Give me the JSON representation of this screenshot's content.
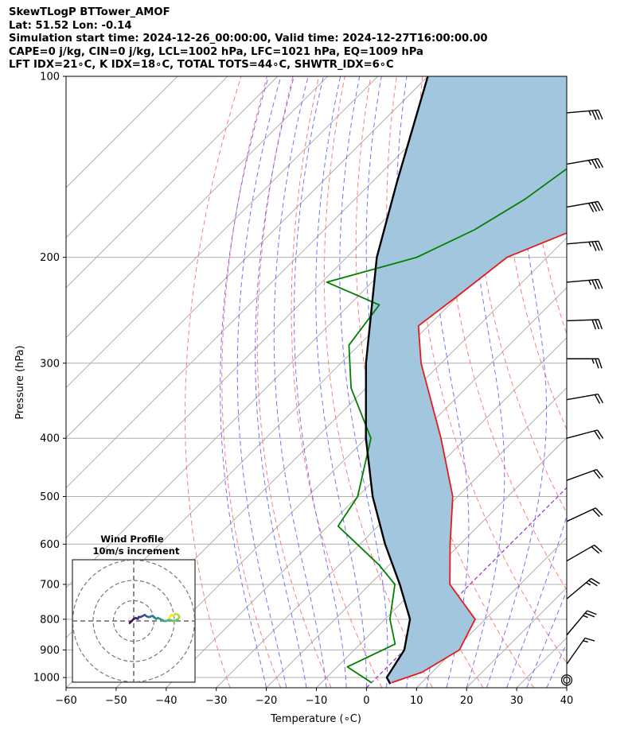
{
  "header": {
    "line1": "SkewTLogP BTTower_AMOF",
    "line2": "Lat: 51.52   Lon: -0.14",
    "line3": "Simulation start time: 2024-12-26_00:00:00, Valid time: 2024-12-27T16:00:00.00",
    "line4": "CAPE=0 j/kg, CIN=0 j/kg, LCL=1002 hPa, LFC=1021 hPa, EQ=1009 hPa",
    "line5": "LFT IDX=21∘C, K IDX=18∘C, TOTAL TOTS=44∘C, SHWTR_IDX=6∘C"
  },
  "inset": {
    "title": "Wind Profile",
    "subtitle": "10m/s increment"
  },
  "colors": {
    "temperature": "#e41a1c",
    "dewpoint": "#008000",
    "parcel": "#000000",
    "cape_fill": "#a3c6df",
    "dry_adiabat": "#ff6666",
    "moist_adiabat": "#5a5aff",
    "isotherm": "#b0b0b0",
    "zero_isotherm": "#9b40c8"
  },
  "chart_data": {
    "type": "line",
    "title": "",
    "xlabel": "Temperature (∘C)",
    "ylabel": "Pressure (hPa)",
    "xlim": [
      -60,
      40
    ],
    "ylim": [
      1040,
      100
    ],
    "y_scale": "log",
    "skew": true,
    "x_ticks": [
      "−60",
      "−50",
      "−40",
      "−30",
      "−20",
      "−10",
      "0",
      "10",
      "20",
      "30",
      "40"
    ],
    "y_ticks": [
      "100",
      "200",
      "300",
      "400",
      "500",
      "600",
      "700",
      "800",
      "900",
      "1000"
    ],
    "grid": true,
    "series": [
      {
        "kind": "temperature",
        "points": [
          [
            100,
            -33
          ],
          [
            130,
            -39
          ],
          [
            160,
            -44
          ],
          [
            180,
            -50
          ],
          [
            200,
            -58
          ],
          [
            230,
            -60
          ],
          [
            260,
            -62
          ],
          [
            300,
            -54
          ],
          [
            400,
            -35
          ],
          [
            500,
            -21
          ],
          [
            600,
            -12
          ],
          [
            700,
            -4
          ],
          [
            800,
            8
          ],
          [
            900,
            11
          ],
          [
            980,
            8
          ],
          [
            1020,
            4
          ]
        ]
      },
      {
        "kind": "dewpoint",
        "points": [
          [
            100,
            -53
          ],
          [
            130,
            -62
          ],
          [
            160,
            -66
          ],
          [
            180,
            -70
          ],
          [
            200,
            -76
          ],
          [
            220,
            -89
          ],
          [
            240,
            -74
          ],
          [
            280,
            -72
          ],
          [
            330,
            -63
          ],
          [
            400,
            -49
          ],
          [
            500,
            -40
          ],
          [
            560,
            -38
          ],
          [
            650,
            -22
          ],
          [
            700,
            -15
          ],
          [
            800,
            -9
          ],
          [
            880,
            -3
          ],
          [
            960,
            -8
          ],
          [
            1020,
            0
          ]
        ]
      },
      {
        "kind": "parcel",
        "points": [
          [
            100,
            -110
          ],
          [
            150,
            -95
          ],
          [
            200,
            -84
          ],
          [
            300,
            -65
          ],
          [
            400,
            -50
          ],
          [
            500,
            -37
          ],
          [
            600,
            -25
          ],
          [
            700,
            -14
          ],
          [
            800,
            -5
          ],
          [
            900,
            0
          ],
          [
            1000,
            2
          ],
          [
            1025,
            4
          ]
        ]
      }
    ],
    "wind_barbs": [
      {
        "pressure": 115,
        "speed_kt": 35,
        "direction": 265
      },
      {
        "pressure": 140,
        "speed_kt": 35,
        "direction": 260
      },
      {
        "pressure": 165,
        "speed_kt": 40,
        "direction": 260
      },
      {
        "pressure": 190,
        "speed_kt": 35,
        "direction": 265
      },
      {
        "pressure": 220,
        "speed_kt": 35,
        "direction": 265
      },
      {
        "pressure": 255,
        "speed_kt": 30,
        "direction": 268
      },
      {
        "pressure": 295,
        "speed_kt": 25,
        "direction": 270
      },
      {
        "pressure": 345,
        "speed_kt": 20,
        "direction": 260
      },
      {
        "pressure": 400,
        "speed_kt": 20,
        "direction": 255
      },
      {
        "pressure": 470,
        "speed_kt": 20,
        "direction": 250
      },
      {
        "pressure": 550,
        "speed_kt": 20,
        "direction": 245
      },
      {
        "pressure": 640,
        "speed_kt": 20,
        "direction": 240
      },
      {
        "pressure": 740,
        "speed_kt": 25,
        "direction": 230
      },
      {
        "pressure": 850,
        "speed_kt": 25,
        "direction": 220
      },
      {
        "pressure": 950,
        "speed_kt": 15,
        "direction": 215
      },
      {
        "pressure": 1010,
        "speed_kt": 0,
        "direction": 0
      }
    ],
    "hodograph": {
      "points": [
        [
          -0.2,
          -0.1
        ],
        [
          -0.1,
          0.0
        ],
        [
          0.0,
          0.1
        ],
        [
          0.1,
          0.15
        ],
        [
          0.2,
          0.1
        ],
        [
          0.25,
          0.2
        ],
        [
          0.35,
          0.2
        ],
        [
          0.45,
          0.25
        ],
        [
          0.55,
          0.3
        ],
        [
          0.6,
          0.25
        ],
        [
          0.7,
          0.2
        ],
        [
          0.8,
          0.2
        ],
        [
          0.9,
          0.25
        ],
        [
          1.0,
          0.2
        ],
        [
          1.1,
          0.1
        ],
        [
          1.2,
          0.15
        ],
        [
          1.3,
          0.1
        ],
        [
          1.4,
          0.05
        ],
        [
          1.5,
          0.0
        ],
        [
          1.6,
          0.0
        ],
        [
          1.7,
          0.05
        ],
        [
          1.8,
          0.05
        ],
        [
          1.95,
          0.0
        ],
        [
          2.1,
          0.05
        ],
        [
          2.2,
          0.1
        ],
        [
          2.25,
          0.2
        ],
        [
          2.2,
          0.3
        ],
        [
          2.05,
          0.35
        ],
        [
          1.95,
          0.25
        ],
        [
          1.85,
          0.3
        ],
        [
          1.75,
          0.15
        ]
      ],
      "rings": [
        1,
        2,
        3
      ]
    }
  }
}
